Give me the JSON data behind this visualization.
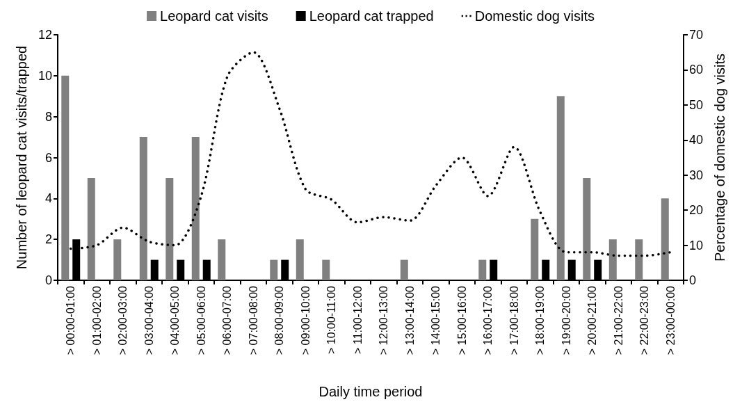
{
  "chart_data": {
    "type": "bar",
    "xlabel": "Daily time period",
    "ylabel": "Number of leopard cat visits/trapped",
    "y2label": "Percentage of domestic dog visits",
    "categories": [
      "> 00:00-01:00",
      "> 01:00-02:00",
      "> 02:00-03:00",
      "> 03:00-04:00",
      "> 04:00-05:00",
      "> 05:00-06:00",
      "> 06:00-07:00",
      "> 07:00-08:00",
      "> 08:00-09:00",
      "> 09:00-10:00",
      "> 10:00-11:00",
      "> 11:00-12:00",
      "> 12:00-13:00",
      "> 13:00-14:00",
      "> 14:00-15:00",
      "> 15:00-16:00",
      "> 16:00-17:00",
      "> 17:00-18:00",
      "> 18:00-19:00",
      "> 19:00-20:00",
      "> 20:00-21:00",
      "> 21:00-22:00",
      "> 22:00-23:00",
      "> 23:00-00:00"
    ],
    "series": [
      {
        "name": "Leopard cat visits",
        "color": "#808080",
        "values": [
          10,
          5,
          2,
          7,
          5,
          7,
          2,
          0,
          1,
          2,
          1,
          0,
          0,
          1,
          0,
          0,
          1,
          0,
          3,
          9,
          5,
          2,
          2,
          4
        ]
      },
      {
        "name": "Leopard cat trapped",
        "color": "#000000",
        "values": [
          2,
          0,
          0,
          1,
          1,
          1,
          0,
          0,
          1,
          0,
          0,
          0,
          0,
          0,
          0,
          0,
          1,
          0,
          1,
          1,
          1,
          0,
          0,
          0
        ]
      },
      {
        "name": "Domestic dog visits",
        "type": "line",
        "axis": "y2",
        "color": "#000000",
        "line_style": "dotted",
        "values": [
          9,
          10,
          15,
          11,
          10,
          24,
          58,
          65,
          49,
          26,
          23,
          16.5,
          18,
          17,
          27,
          35,
          24,
          38,
          19.5,
          8,
          8,
          7,
          7,
          8
        ]
      }
    ],
    "ylim": [
      0,
      12
    ],
    "yticks": [
      0,
      2,
      4,
      6,
      8,
      10,
      12
    ],
    "y2lim": [
      0,
      70
    ],
    "y2ticks": [
      0,
      10,
      20,
      30,
      40,
      50,
      60,
      70
    ],
    "grid": false,
    "legend": "top",
    "marker": "none"
  }
}
